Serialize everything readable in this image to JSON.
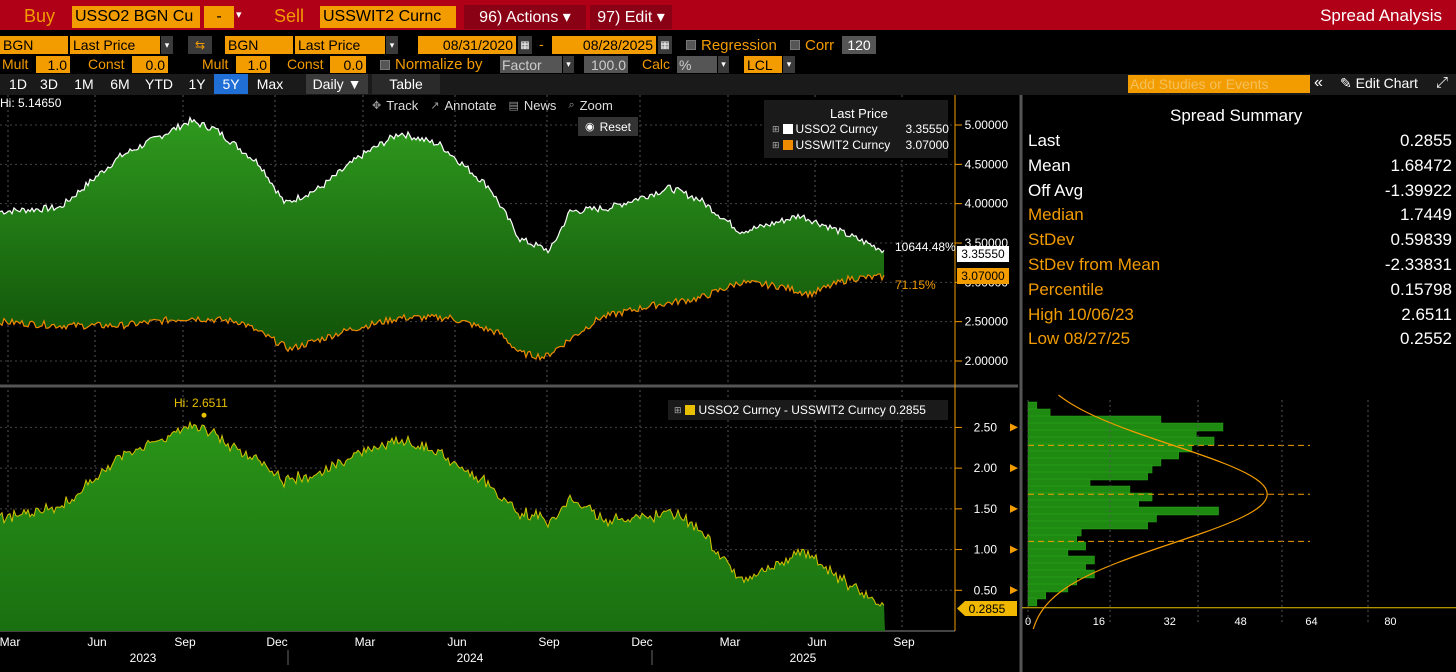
{
  "topbar": {
    "buy_label": "Buy",
    "buy_security": "USSO2 BGN Cu",
    "buy_dropdown": "-",
    "sell_label": "Sell",
    "sell_security": "USSWIT2 Curnc",
    "actions_label": "96) Actions ▾",
    "edit_label": "97) Edit ▾",
    "title": "Spread Analysis"
  },
  "row2": {
    "src1": "BGN",
    "field1": "Last Price",
    "src2": "BGN",
    "field2": "Last Price",
    "start_date": "08/31/2020",
    "dash": "-",
    "end_date": "08/28/2025",
    "regression_label": "Regression",
    "corr_label": "Corr",
    "corr_value": "120"
  },
  "row3": {
    "mult1_label": "Mult",
    "mult1": "1.0",
    "const1_label": "Const",
    "const1": "0.0",
    "mult2_label": "Mult",
    "mult2": "1.0",
    "const2_label": "Const",
    "const2": "0.0",
    "normalize_label": "Normalize by",
    "normalize_value": "Factor",
    "normalize_num": "100.0",
    "calc_label": "Calc",
    "calc_value": "%",
    "currency": "LCL"
  },
  "row4": {
    "periods": [
      "1D",
      "3D",
      "1M",
      "6M",
      "YTD",
      "1Y",
      "5Y",
      "Max"
    ],
    "selected": "5Y",
    "freq": "Daily ▼",
    "table": "Table",
    "studies_placeholder": "Add Studies or Events",
    "collapse": "«",
    "edit_chart": "✎ Edit Chart",
    "maximize": "⤢"
  },
  "upper_chart": {
    "hi_label": "Hi: 5.14650",
    "toolbar": [
      "Track",
      "Annotate",
      "News",
      "Zoom"
    ],
    "reset": "Reset",
    "legend_title": "Last Price",
    "legend": [
      {
        "name": "USSO2 Curncy",
        "value": "3.35550",
        "color": "#ffffff"
      },
      {
        "name": "USSWIT2 Curncy",
        "value": "3.07000",
        "color": "#f08a00"
      }
    ],
    "yticks": [
      "5.00000",
      "4.50000",
      "4.00000",
      "3.50000",
      "3.00000",
      "2.50000",
      "2.00000"
    ],
    "ann_pct1": "10644.48%",
    "ann_pct2": "71.15%",
    "last1": "3.35550",
    "last2": "3.07000"
  },
  "lower_chart": {
    "hi_label": "Hi: 2.6511",
    "legend": "USSO2 Curncy - USSWIT2 Curncy 0.2855",
    "yticks": [
      "2.50",
      "2.00",
      "1.50",
      "1.00",
      "0.50"
    ],
    "last": "0.2855"
  },
  "xaxis": {
    "months": [
      "Mar",
      "Jun",
      "Sep",
      "Dec",
      "Mar",
      "Jun",
      "Sep",
      "Dec",
      "Mar",
      "Jun",
      "Sep"
    ],
    "years": [
      "2023",
      "2024",
      "2025"
    ]
  },
  "summary": {
    "title": "Spread Summary",
    "rows": [
      {
        "k": "Last",
        "v": "0.2855",
        "c": "#ffffff"
      },
      {
        "k": "Mean",
        "v": "1.68472",
        "c": "#ffffff"
      },
      {
        "k": "Off Avg",
        "v": "-1.39922",
        "c": "#ffffff"
      },
      {
        "k": "Median",
        "v": "1.7449",
        "c": "#f39c00"
      },
      {
        "k": "StDev",
        "v": "0.59839",
        "c": "#f39c00"
      },
      {
        "k": "StDev from Mean",
        "v": "-2.33831",
        "c": "#f39c00"
      },
      {
        "k": "Percentile",
        "v": "0.15798",
        "c": "#f39c00"
      },
      {
        "k": "High 10/06/23",
        "v": "2.6511",
        "c": "#f39c00"
      },
      {
        "k": "Low 08/27/25",
        "v": "0.2552",
        "c": "#f39c00"
      }
    ]
  },
  "histogram": {
    "xticks": [
      "0",
      "16",
      "32",
      "48",
      "64",
      "80"
    ]
  },
  "colors": {
    "brand_red": "#b00018",
    "accent_orange": "#f39c00",
    "area_green": "#1e7d12",
    "spread_yellow": "#e8c000",
    "selected_blue": "#1f6fd6"
  }
}
